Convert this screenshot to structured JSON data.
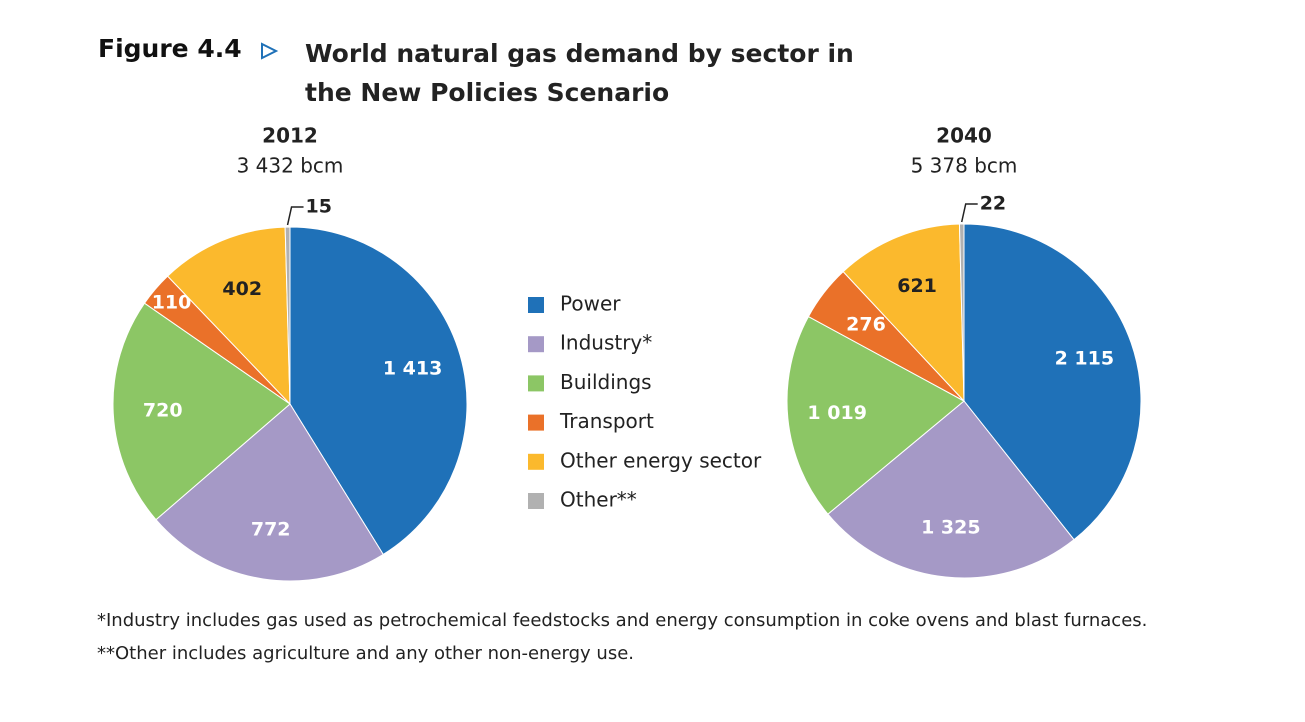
{
  "figure": {
    "label": "Figure 4.4",
    "title": "World natural gas demand by sector in the New Policies Scenario"
  },
  "chart_data": [
    {
      "type": "pie",
      "title": "2012",
      "subtitle": "3 432 bcm",
      "categories": [
        "Power",
        "Industry*",
        "Buildings",
        "Transport",
        "Other energy sector",
        "Other**"
      ],
      "colors": [
        "#1f71b8",
        "#a599c6",
        "#8cc665",
        "#ea7129",
        "#fbb92d",
        "#b1b1b1"
      ],
      "values": [
        1413,
        772,
        720,
        110,
        402,
        15
      ],
      "value_labels": [
        "1 413",
        "772",
        "720",
        "110",
        "402",
        "15"
      ]
    },
    {
      "type": "pie",
      "title": "2040",
      "subtitle": "5 378 bcm",
      "categories": [
        "Power",
        "Industry*",
        "Buildings",
        "Transport",
        "Other energy sector",
        "Other**"
      ],
      "colors": [
        "#1f71b8",
        "#a599c6",
        "#8cc665",
        "#ea7129",
        "#fbb92d",
        "#b1b1b1"
      ],
      "values": [
        2115,
        1325,
        1019,
        276,
        621,
        22
      ],
      "value_labels": [
        "2 115",
        "1 325",
        "1 019",
        "276",
        "621",
        "22"
      ]
    }
  ],
  "notes": [
    "*Industry includes gas used as petrochemical feedstocks and energy consumption in coke ovens and blast furnaces.",
    "**Other includes agriculture and any other non-energy use."
  ]
}
